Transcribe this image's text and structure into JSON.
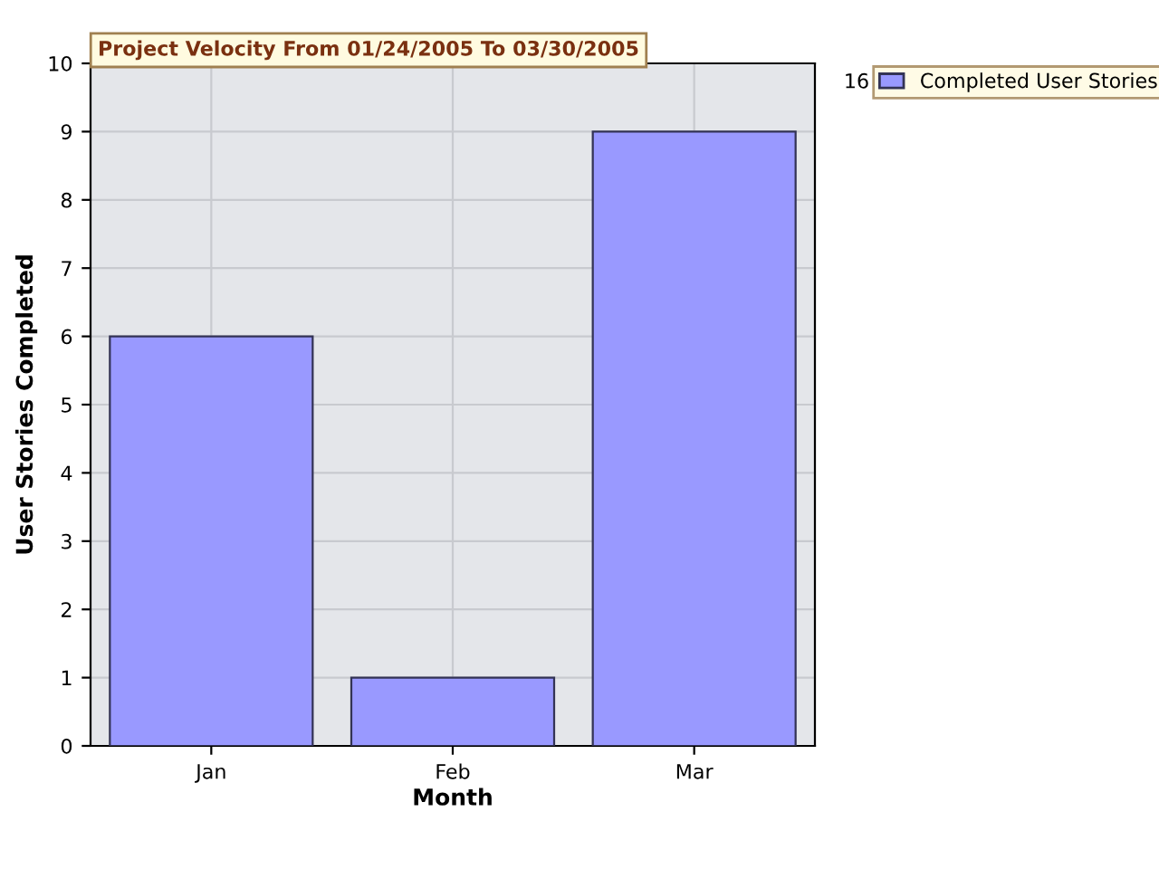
{
  "chart_data": {
    "type": "bar",
    "title": "Project Velocity From 01/24/2005 To 03/30/2005",
    "xlabel": "Month",
    "ylabel": "User Stories Completed",
    "categories": [
      "Jan",
      "Feb",
      "Mar"
    ],
    "series": [
      {
        "name": "Completed User Stories",
        "color": "#9999ff",
        "values": [
          6,
          1,
          9
        ]
      }
    ],
    "annotations": [
      "16"
    ],
    "ylim": [
      0,
      10
    ],
    "yticks": [
      0,
      1,
      2,
      3,
      4,
      5,
      6,
      7,
      8,
      9,
      10
    ],
    "grid": true,
    "legend": "top right"
  }
}
